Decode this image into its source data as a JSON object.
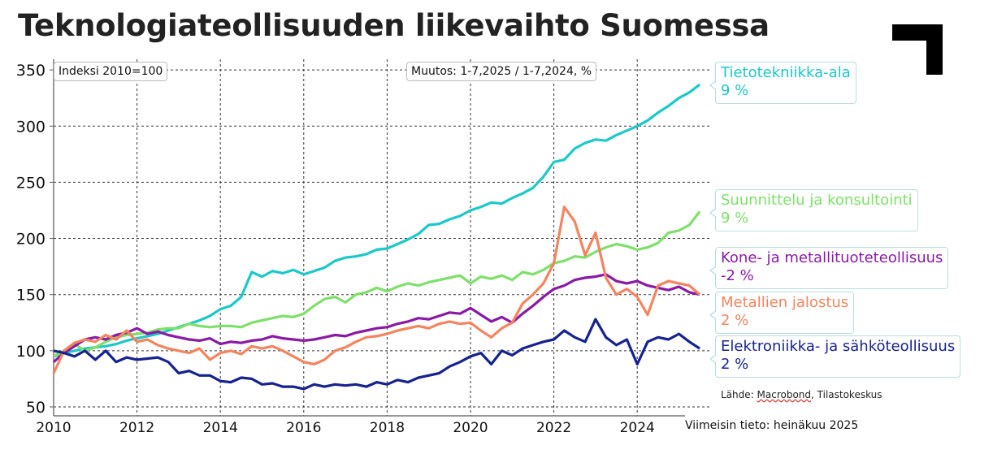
{
  "title": "Teknologiateollisuuden liikevaihto Suomessa",
  "chart_data": {
    "type": "line",
    "title": "Teknologiateollisuuden liikevaihto Suomessa",
    "index_note": "Indeksi 2010=100",
    "change_note": "Muutos: 1-7,2025 / 1-7,2024, %",
    "xlim": [
      2010,
      2025.75
    ],
    "ylim": [
      45,
      360
    ],
    "x_ticks": [
      "2010",
      "2012",
      "2014",
      "2016",
      "2018",
      "2020",
      "2022",
      "2024"
    ],
    "y_ticks": [
      "50",
      "100",
      "150",
      "200",
      "250",
      "300",
      "350"
    ],
    "grid": true,
    "x_start": 2010,
    "x_step": 0.25,
    "series": [
      {
        "name": "Tietotekniikka-ala",
        "change": "9 %",
        "color": "#1cc8c8",
        "values": [
          95,
          98,
          100,
          102,
          103,
          104,
          106,
          109,
          111,
          113,
          115,
          118,
          121,
          124,
          127,
          131,
          137,
          140,
          148,
          170,
          166,
          171,
          169,
          172,
          168,
          171,
          174,
          180,
          183,
          184,
          186,
          190,
          191,
          195,
          199,
          204,
          212,
          213,
          217,
          220,
          225,
          228,
          232,
          231,
          236,
          240,
          245,
          255,
          268,
          270,
          280,
          285,
          288,
          287,
          292,
          296,
          300,
          305,
          312,
          318,
          325,
          330,
          337
        ]
      },
      {
        "name": "Suunnittelu ja konsultointi",
        "change": "9 %",
        "color": "#7ee06a",
        "values": [
          95,
          100,
          106,
          100,
          103,
          108,
          112,
          114,
          115,
          116,
          119,
          120,
          120,
          124,
          122,
          121,
          122,
          122,
          121,
          125,
          127,
          129,
          131,
          130,
          133,
          140,
          146,
          148,
          143,
          150,
          152,
          156,
          153,
          157,
          160,
          158,
          161,
          163,
          165,
          167,
          160,
          166,
          164,
          167,
          163,
          170,
          168,
          172,
          178,
          180,
          184,
          183,
          188,
          192,
          195,
          193,
          190,
          192,
          196,
          205,
          207,
          212,
          224
        ]
      },
      {
        "name": "Kone- ja metallituoteteollisuus",
        "change": "-2 %",
        "color": "#8a1aa6",
        "values": [
          90,
          98,
          104,
          110,
          112,
          110,
          114,
          116,
          120,
          115,
          117,
          114,
          112,
          110,
          109,
          111,
          106,
          108,
          107,
          109,
          110,
          113,
          111,
          110,
          109,
          110,
          112,
          114,
          113,
          116,
          118,
          120,
          121,
          124,
          126,
          129,
          128,
          131,
          134,
          133,
          138,
          132,
          126,
          130,
          125,
          133,
          140,
          148,
          155,
          158,
          163,
          165,
          166,
          168,
          162,
          160,
          162,
          158,
          156,
          154,
          157,
          152,
          150
        ]
      },
      {
        "name": "Metallien jalostus",
        "change": "2 %",
        "color": "#f4845f",
        "values": [
          80,
          100,
          107,
          110,
          108,
          114,
          110,
          118,
          108,
          110,
          105,
          102,
          100,
          98,
          102,
          92,
          98,
          100,
          97,
          104,
          102,
          104,
          100,
          95,
          90,
          88,
          92,
          100,
          103,
          108,
          112,
          113,
          115,
          118,
          120,
          122,
          120,
          124,
          126,
          124,
          125,
          118,
          112,
          120,
          125,
          142,
          150,
          160,
          178,
          228,
          215,
          185,
          205,
          165,
          150,
          155,
          148,
          132,
          158,
          162,
          160,
          158,
          150
        ]
      },
      {
        "name": "Elektroniikka- ja sähköteollisuus",
        "change": "2 %",
        "color": "#16238f",
        "values": [
          100,
          98,
          95,
          100,
          92,
          100,
          90,
          94,
          92,
          93,
          94,
          90,
          80,
          82,
          78,
          78,
          73,
          72,
          76,
          75,
          70,
          71,
          68,
          68,
          66,
          70,
          68,
          70,
          69,
          70,
          68,
          72,
          70,
          74,
          72,
          76,
          78,
          80,
          86,
          90,
          95,
          98,
          88,
          100,
          96,
          102,
          105,
          108,
          110,
          118,
          112,
          108,
          128,
          112,
          105,
          110,
          88,
          108,
          112,
          110,
          115,
          108,
          102
        ]
      }
    ]
  },
  "source": {
    "prefix": "Lähde: ",
    "underlined": "Macrobond",
    "suffix": ", Tilastokeskus"
  },
  "latest": "Viimeisin tieto: heinäkuu 2025"
}
